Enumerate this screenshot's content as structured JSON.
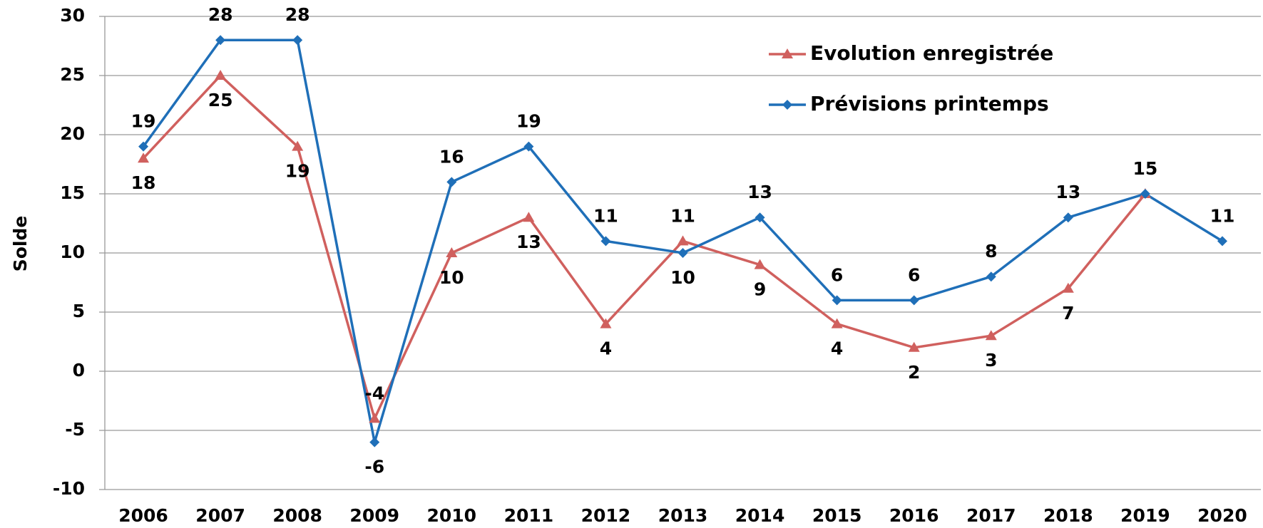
{
  "chart_data": {
    "type": "line",
    "y_label": "Solde",
    "categories": [
      "2006",
      "2007",
      "2008",
      "2009",
      "2010",
      "2011",
      "2012",
      "2013",
      "2014",
      "2015",
      "2016",
      "2017",
      "2018",
      "2019",
      "2020"
    ],
    "series": [
      {
        "name": "Evolution enregistrée",
        "color": "#d0605e",
        "marker": "triangle",
        "values": [
          18,
          25,
          19,
          -4,
          10,
          13,
          4,
          11,
          9,
          4,
          2,
          3,
          7,
          15,
          null
        ]
      },
      {
        "name": "Prévisions printemps",
        "color": "#1f6fb8",
        "marker": "diamond",
        "values": [
          19,
          28,
          28,
          -6,
          16,
          19,
          11,
          10,
          13,
          6,
          6,
          8,
          13,
          15,
          11
        ]
      }
    ],
    "ylim": [
      -10,
      30
    ],
    "yticks": [
      -10,
      -5,
      0,
      5,
      10,
      15,
      20,
      25,
      30
    ],
    "grid": true
  }
}
